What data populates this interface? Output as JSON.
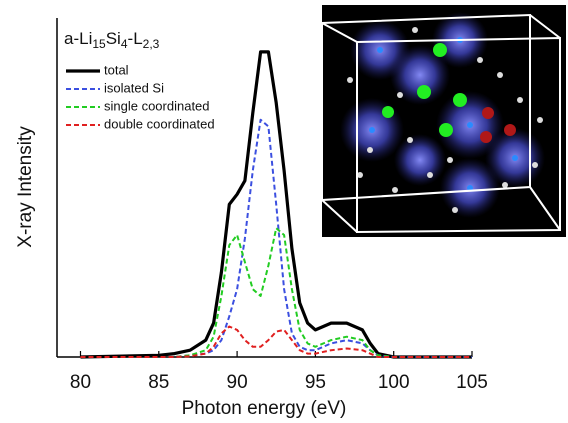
{
  "chart_data": {
    "type": "line",
    "title_parts": [
      "a-Li",
      "15",
      "Si",
      "4",
      "-L",
      "2,3"
    ],
    "x_label": "Photon energy (eV)",
    "y_label": "X-ray Intensity",
    "x": [
      80,
      85,
      86,
      87,
      88,
      88.5,
      89,
      89.5,
      90,
      90.5,
      91,
      91.5,
      92,
      92.5,
      93,
      93.5,
      94,
      94.5,
      95,
      96,
      97,
      98,
      98.5,
      99,
      100,
      105
    ],
    "series": [
      {
        "name": "total",
        "color": "#000000",
        "dash": false,
        "width": 3.2,
        "values": [
          0,
          0.005,
          0.01,
          0.02,
          0.05,
          0.1,
          0.25,
          0.45,
          0.48,
          0.52,
          0.72,
          0.9,
          0.9,
          0.75,
          0.55,
          0.32,
          0.16,
          0.1,
          0.08,
          0.1,
          0.1,
          0.08,
          0.04,
          0.01,
          0,
          0
        ]
      },
      {
        "name": "isolated Si",
        "color": "#3b4fe0",
        "dash": true,
        "width": 2,
        "values": [
          0,
          0,
          0,
          0.005,
          0.01,
          0.02,
          0.05,
          0.12,
          0.2,
          0.35,
          0.55,
          0.7,
          0.68,
          0.45,
          0.2,
          0.07,
          0.03,
          0.02,
          0.02,
          0.04,
          0.05,
          0.04,
          0.02,
          0.005,
          0,
          0
        ]
      },
      {
        "name": "single coordinated",
        "color": "#22cc22",
        "dash": true,
        "width": 2,
        "values": [
          0,
          0,
          0,
          0.005,
          0.02,
          0.06,
          0.18,
          0.33,
          0.36,
          0.28,
          0.2,
          0.18,
          0.27,
          0.38,
          0.36,
          0.2,
          0.08,
          0.04,
          0.03,
          0.05,
          0.06,
          0.05,
          0.02,
          0.005,
          0,
          0
        ]
      },
      {
        "name": "double coordinated",
        "color": "#e02020",
        "dash": true,
        "width": 2,
        "values": [
          0,
          0,
          0,
          0.002,
          0.01,
          0.03,
          0.07,
          0.09,
          0.08,
          0.05,
          0.03,
          0.03,
          0.05,
          0.075,
          0.08,
          0.05,
          0.02,
          0.01,
          0.01,
          0.02,
          0.025,
          0.02,
          0.01,
          0,
          0,
          0
        ]
      }
    ],
    "xlim": [
      78.5,
      105
    ],
    "ylim": [
      0,
      1
    ],
    "xticks": [
      80,
      85,
      90,
      95,
      100,
      105
    ],
    "legend": "upper-left"
  }
}
